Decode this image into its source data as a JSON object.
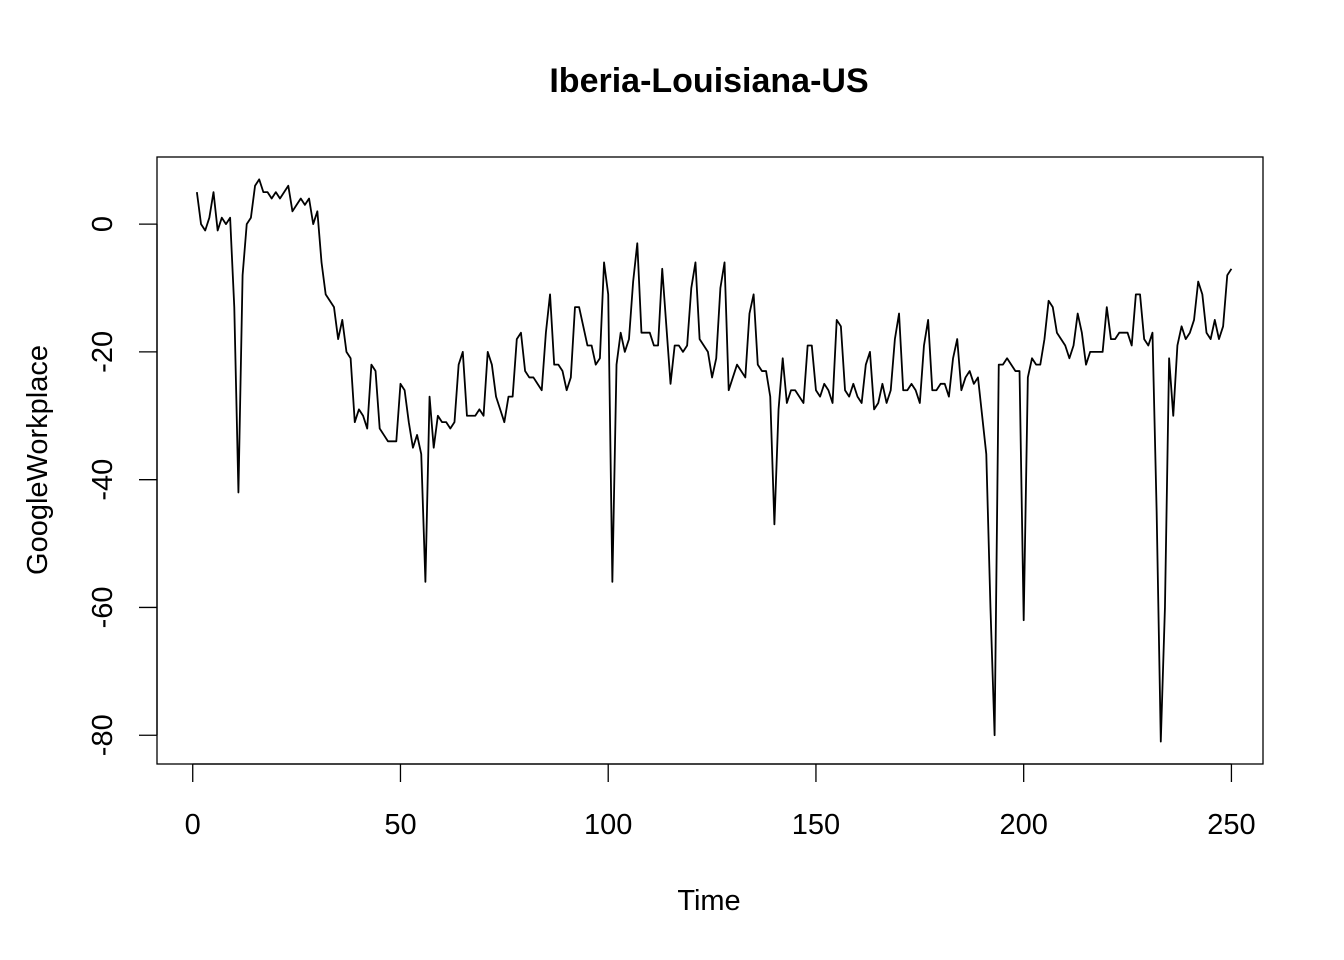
{
  "chart_data": {
    "type": "line",
    "title": "Iberia-Louisiana-US",
    "xlabel": "Time",
    "ylabel": "GoogleWorkplace",
    "xlim": [
      -8.6,
      257.6
    ],
    "ylim": [
      -84.5,
      10.5
    ],
    "xticks": [
      0,
      50,
      100,
      150,
      200,
      250
    ],
    "yticks": [
      0,
      -20,
      -40,
      -60,
      -80
    ],
    "xtick_labels": [
      "0",
      "50",
      "100",
      "150",
      "200",
      "250"
    ],
    "ytick_labels": [
      "0",
      "-20",
      "-40",
      "-60",
      "-80"
    ],
    "grid": false,
    "line_color": "#000000",
    "series": [
      {
        "values": [
          5,
          0,
          -1,
          1,
          5,
          -1,
          1,
          0,
          1,
          -13,
          -42,
          -8,
          0,
          1,
          6,
          7,
          5,
          5,
          4,
          5,
          4,
          5,
          6,
          2,
          3,
          4,
          3,
          4,
          0,
          2,
          -6,
          -11,
          -12,
          -13,
          -18,
          -15,
          -20,
          -21,
          -31,
          -29,
          -30,
          -32,
          -22,
          -23,
          -32,
          -33,
          -34,
          -34,
          -34,
          -25,
          -26,
          -31,
          -35,
          -33,
          -36,
          -56,
          -27,
          -35,
          -30,
          -31,
          -31,
          -32,
          -31,
          -22,
          -20,
          -30,
          -30,
          -30,
          -29,
          -30,
          -20,
          -22,
          -27,
          -29,
          -31,
          -27,
          -27,
          -18,
          -17,
          -23,
          -24,
          -24,
          -25,
          -26,
          -17,
          -11,
          -22,
          -22,
          -23,
          -26,
          -24,
          -13,
          -13,
          -16,
          -19,
          -19,
          -22,
          -21,
          -6,
          -11,
          -56,
          -22,
          -17,
          -20,
          -18,
          -9,
          -3,
          -17,
          -17,
          -17,
          -19,
          -19,
          -7,
          -16,
          -25,
          -19,
          -19,
          -20,
          -19,
          -10,
          -6,
          -18,
          -19,
          -20,
          -24,
          -21,
          -10,
          -6,
          -26,
          -24,
          -22,
          -23,
          -24,
          -14,
          -11,
          -22,
          -23,
          -23,
          -27,
          -47,
          -29,
          -21,
          -28,
          -26,
          -26,
          -27,
          -28,
          -19,
          -19,
          -26,
          -27,
          -25,
          -26,
          -28,
          -15,
          -16,
          -26,
          -27,
          -25,
          -27,
          -28,
          -22,
          -20,
          -29,
          -28,
          -25,
          -28,
          -26,
          -18,
          -14,
          -26,
          -26,
          -25,
          -26,
          -28,
          -19,
          -15,
          -26,
          -26,
          -25,
          -25,
          -27,
          -21,
          -18,
          -26,
          -24,
          -23,
          -25,
          -24,
          -30,
          -36,
          -60,
          -80,
          -22,
          -22,
          -21,
          -22,
          -23,
          -23,
          -62,
          -24,
          -21,
          -22,
          -22,
          -18,
          -12,
          -13,
          -17,
          -18,
          -19,
          -21,
          -19,
          -14,
          -17,
          -22,
          -20,
          -20,
          -20,
          -20,
          -13,
          -18,
          -18,
          -17,
          -17,
          -17,
          -19,
          -11,
          -11,
          -18,
          -19,
          -17,
          -45,
          -81,
          -60,
          -21,
          -30,
          -19,
          -16,
          -18,
          -17,
          -15,
          -9,
          -11,
          -17,
          -18,
          -15,
          -18,
          -16,
          -8,
          -7
        ]
      }
    ]
  }
}
